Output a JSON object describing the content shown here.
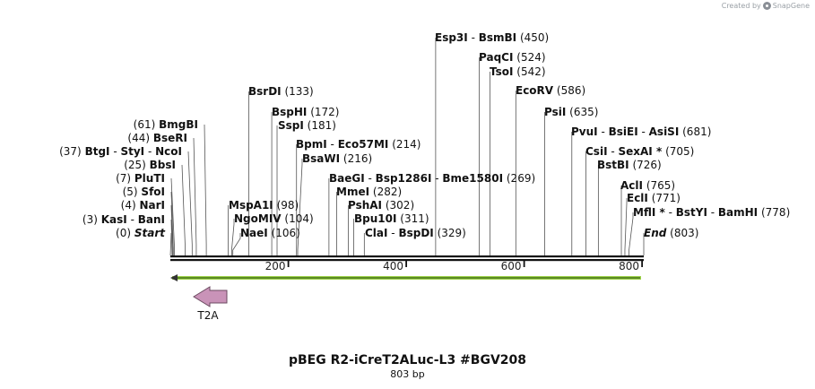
{
  "branding": {
    "prefix": "Created by",
    "name": "SnapGene"
  },
  "title": "pBEG R2-iCreT2ALuc-L3 #BGV208",
  "length_label": "803 bp",
  "sequence": {
    "length": 803
  },
  "axis_ticks": [
    {
      "value": 200,
      "label": "200"
    },
    {
      "value": 400,
      "label": "400"
    },
    {
      "value": 600,
      "label": "600"
    },
    {
      "value": 800,
      "label": "800"
    }
  ],
  "feature": {
    "name": "T2A",
    "direction": "reverse",
    "color": "#c993b8"
  },
  "primer_bar": {
    "color": "#9ed24a"
  },
  "sites": [
    {
      "pos": 0,
      "pos_text": "(0)",
      "names": [
        "Start"
      ],
      "italic": true,
      "side": "left"
    },
    {
      "pos": 3,
      "pos_text": "(3)",
      "names": [
        "KasI",
        "BanI"
      ],
      "side": "left"
    },
    {
      "pos": 4,
      "pos_text": "(4)",
      "names": [
        "NarI"
      ],
      "side": "left"
    },
    {
      "pos": 5,
      "pos_text": "(5)",
      "names": [
        "SfoI"
      ],
      "side": "left"
    },
    {
      "pos": 7,
      "pos_text": "(7)",
      "names": [
        "PluTI"
      ],
      "side": "left"
    },
    {
      "pos": 25,
      "pos_text": "(25)",
      "names": [
        "BbsI"
      ],
      "side": "left"
    },
    {
      "pos": 37,
      "pos_text": "(37)",
      "names": [
        "BtgI",
        "StyI",
        "NcoI"
      ],
      "side": "left"
    },
    {
      "pos": 44,
      "pos_text": "(44)",
      "names": [
        "BseRI"
      ],
      "side": "left"
    },
    {
      "pos": 61,
      "pos_text": "(61)",
      "names": [
        "BmgBI"
      ],
      "side": "left"
    },
    {
      "pos": 98,
      "pos_text": "(98)",
      "names": [
        "MspA1I"
      ],
      "side": "right"
    },
    {
      "pos": 104,
      "pos_text": "(104)",
      "names": [
        "NgoMIV"
      ],
      "side": "right"
    },
    {
      "pos": 106,
      "pos_text": "(106)",
      "names": [
        "NaeI"
      ],
      "side": "right"
    },
    {
      "pos": 133,
      "pos_text": "(133)",
      "names": [
        "BsrDI"
      ],
      "side": "right"
    },
    {
      "pos": 172,
      "pos_text": "(172)",
      "names": [
        "BspHI"
      ],
      "side": "right"
    },
    {
      "pos": 181,
      "pos_text": "(181)",
      "names": [
        "SspI"
      ],
      "side": "right"
    },
    {
      "pos": 214,
      "pos_text": "(214)",
      "names": [
        "BpmI",
        "Eco57MI"
      ],
      "side": "right"
    },
    {
      "pos": 216,
      "pos_text": "(216)",
      "names": [
        "BsaWI"
      ],
      "side": "right"
    },
    {
      "pos": 269,
      "pos_text": "(269)",
      "names": [
        "BaeGI",
        "Bsp1286I",
        "Bme1580I"
      ],
      "side": "right"
    },
    {
      "pos": 282,
      "pos_text": "(282)",
      "names": [
        "MmeI"
      ],
      "side": "right"
    },
    {
      "pos": 302,
      "pos_text": "(302)",
      "names": [
        "PshAI"
      ],
      "side": "right"
    },
    {
      "pos": 311,
      "pos_text": "(311)",
      "names": [
        "Bpu10I"
      ],
      "side": "right"
    },
    {
      "pos": 329,
      "pos_text": "(329)",
      "names": [
        "ClaI",
        "BspDI"
      ],
      "side": "right"
    },
    {
      "pos": 450,
      "pos_text": "(450)",
      "names": [
        "Esp3I",
        "BsmBI"
      ],
      "side": "right"
    },
    {
      "pos": 524,
      "pos_text": "(524)",
      "names": [
        "PaqCI"
      ],
      "side": "right"
    },
    {
      "pos": 542,
      "pos_text": "(542)",
      "names": [
        "TsoI"
      ],
      "side": "right"
    },
    {
      "pos": 586,
      "pos_text": "(586)",
      "names": [
        "EcoRV"
      ],
      "side": "right"
    },
    {
      "pos": 635,
      "pos_text": "(635)",
      "names": [
        "PsiI"
      ],
      "side": "right"
    },
    {
      "pos": 681,
      "pos_text": "(681)",
      "names": [
        "PvuI",
        "BsiEI",
        "AsiSI"
      ],
      "side": "right"
    },
    {
      "pos": 705,
      "pos_text": "(705)",
      "names": [
        "CsiI",
        "SexAI *"
      ],
      "side": "right"
    },
    {
      "pos": 726,
      "pos_text": "(726)",
      "names": [
        "BstBI"
      ],
      "side": "right"
    },
    {
      "pos": 765,
      "pos_text": "(765)",
      "names": [
        "AclI"
      ],
      "side": "right"
    },
    {
      "pos": 771,
      "pos_text": "(771)",
      "names": [
        "EclI"
      ],
      "side": "right"
    },
    {
      "pos": 778,
      "pos_text": "(778)",
      "names": [
        "MflI *",
        "BstYI",
        "BamHI"
      ],
      "side": "right"
    },
    {
      "pos": 803,
      "pos_text": "(803)",
      "names": [
        "End"
      ],
      "italic": true,
      "side": "right"
    }
  ]
}
